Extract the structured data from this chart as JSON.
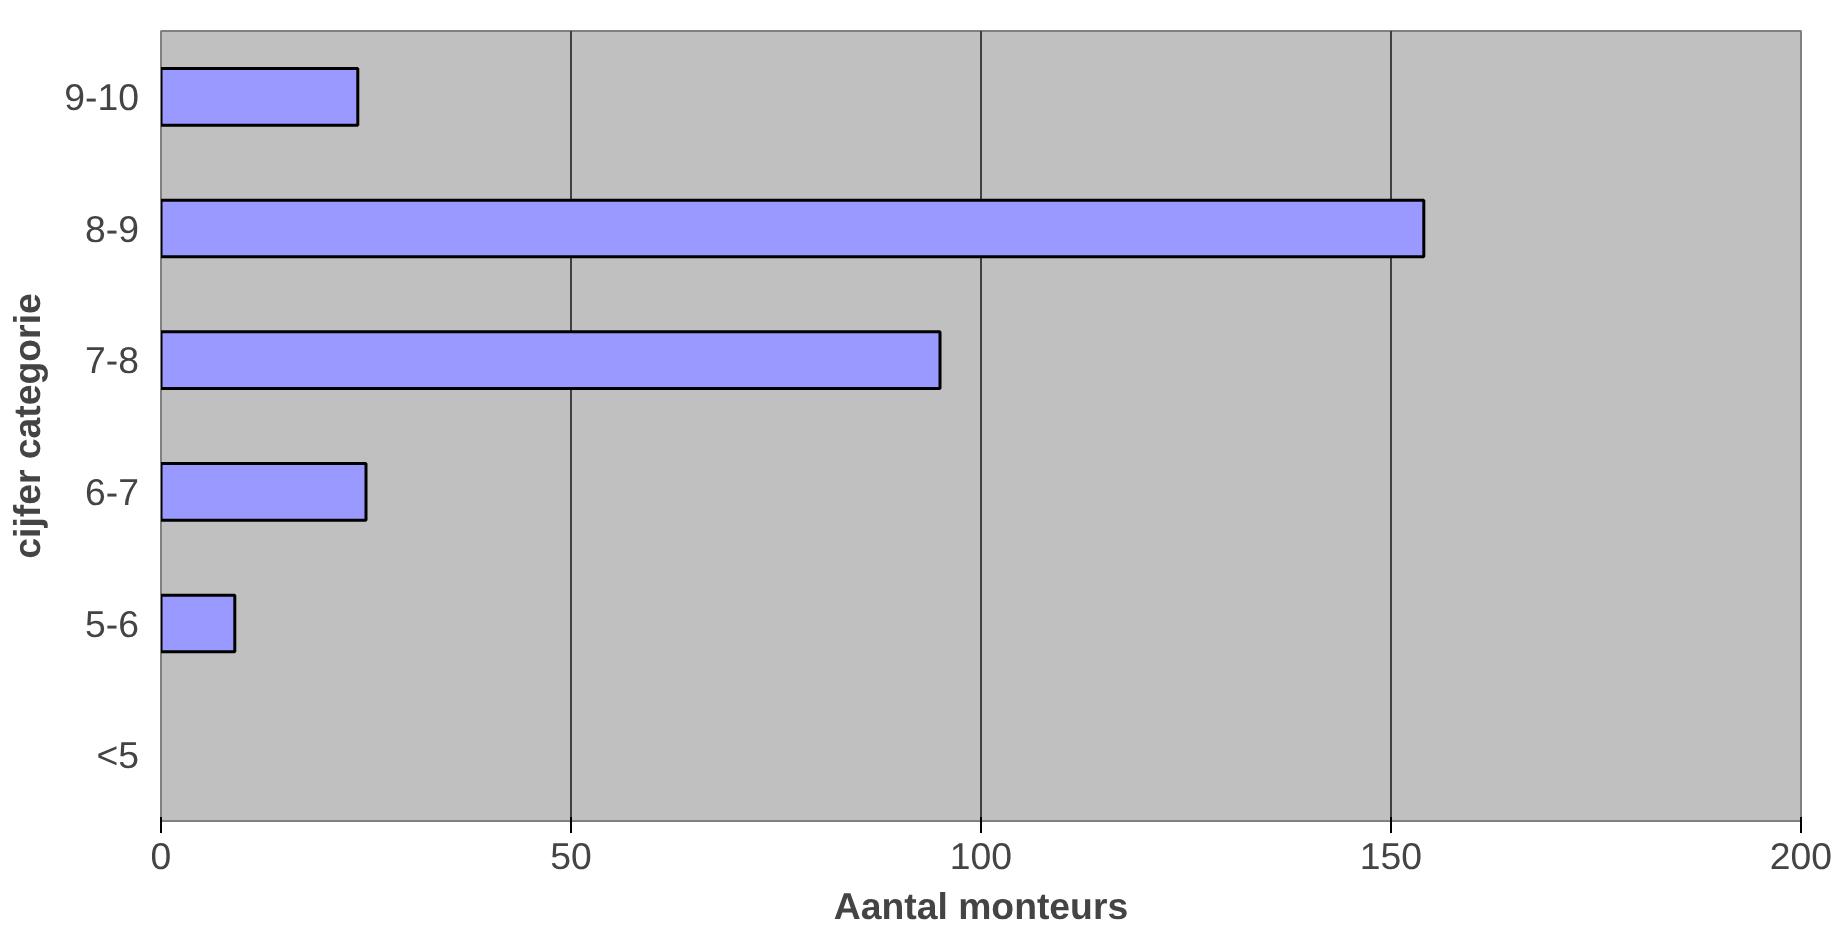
{
  "chart_data": {
    "type": "bar",
    "orientation": "horizontal",
    "xlabel": "Aantal monteurs",
    "ylabel": "cijfer categorie",
    "categories": [
      "9-10",
      "8-9",
      "7-8",
      "6-7",
      "5-6",
      "<5"
    ],
    "values": [
      24,
      154,
      95,
      25,
      9,
      0
    ],
    "color": "#9999ff",
    "xlim": [
      0,
      200
    ],
    "xticks": [
      0,
      50,
      100,
      150,
      200
    ],
    "grid": "x"
  }
}
